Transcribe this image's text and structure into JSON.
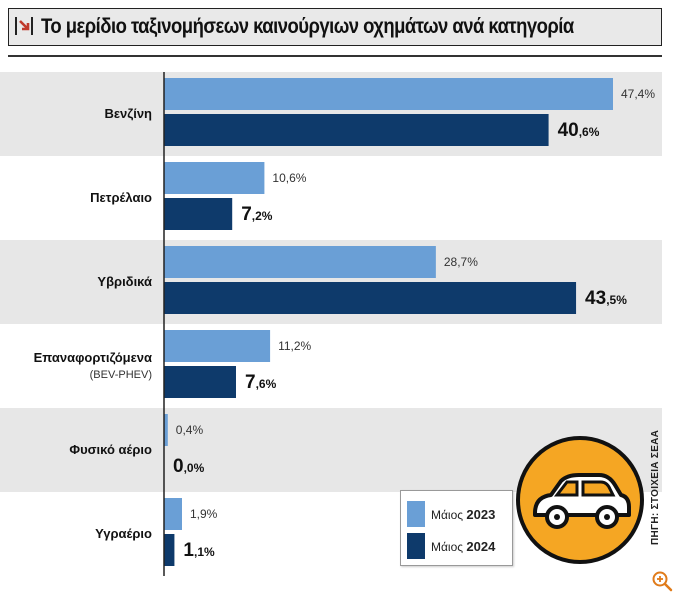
{
  "header": {
    "title": "Το μερίδιο ταξινομήσεων καινούργιων οχημάτων ανά κατηγορία"
  },
  "legend": {
    "item_2023_prefix": "Μάιος ",
    "item_2023_year": "2023",
    "item_2024_prefix": "Μάιος ",
    "item_2024_year": "2024"
  },
  "source": {
    "label": "ΠΗΓΗ: ΣΤΟΙΧΕΙΑ ΣΕΑΑ"
  },
  "colors": {
    "series_2023": "#6a9fd6",
    "series_2024": "#0e3a6b",
    "band": "#e7e7e7",
    "car_circle": "#f5a623"
  },
  "icons": {
    "header": "red-arrow-icon",
    "car": "car-icon",
    "zoom": "zoom-in-icon"
  },
  "chart_data": {
    "type": "bar",
    "orientation": "horizontal",
    "categories": [
      "Βενζίνη",
      "Πετρέλαιο",
      "Υβριδικά",
      "Επαναφορτιζόμενα",
      "Φυσικό αέριο",
      "Υγραέριο"
    ],
    "category_sublabels": [
      "",
      "",
      "",
      "(BEV-PHEV)",
      "",
      ""
    ],
    "series": [
      {
        "name": "Μάιος 2023",
        "values": [
          47.4,
          10.6,
          28.7,
          11.2,
          0.4,
          1.9
        ],
        "labels": [
          "47,4%",
          "10,6%",
          "28,7%",
          "11,2%",
          "0,4%",
          "1,9%"
        ]
      },
      {
        "name": "Μάιος 2024",
        "values": [
          40.6,
          7.2,
          43.5,
          7.6,
          0.0,
          1.1
        ],
        "labels": [
          "40,6%",
          "7,2%",
          "43,5%",
          "7,6%",
          "0,0%",
          "1,1%"
        ]
      }
    ],
    "xlim": [
      0,
      47.4
    ],
    "grid": false,
    "legend": "bottom-right"
  }
}
